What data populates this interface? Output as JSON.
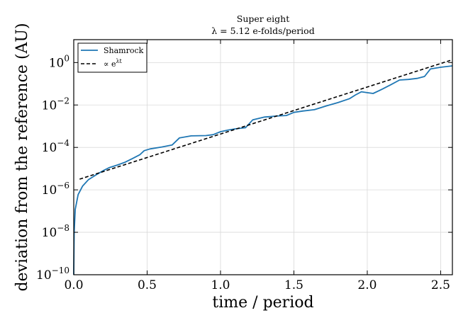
{
  "chart_data": {
    "type": "line",
    "title": "Super eight",
    "subtitle": "λ = 5.12 e-folds/period",
    "xlabel": "time / period",
    "ylabel": "deviation from the reference (AU)",
    "xlim": [
      0,
      2.58
    ],
    "ylim": [
      1e-10,
      12
    ],
    "yscale": "log",
    "grid": true,
    "legend_position": "upper-left",
    "x_ticks": [
      {
        "value": 0.0,
        "label": "0.0"
      },
      {
        "value": 0.5,
        "label": "0.5"
      },
      {
        "value": 1.0,
        "label": "1.0"
      },
      {
        "value": 1.5,
        "label": "1.5"
      },
      {
        "value": 2.0,
        "label": "2.0"
      },
      {
        "value": 2.5,
        "label": "2.5"
      }
    ],
    "y_ticks": [
      {
        "exp": -10,
        "base": "10",
        "sup": "−10"
      },
      {
        "exp": -8,
        "base": "10",
        "sup": "−8"
      },
      {
        "exp": -6,
        "base": "10",
        "sup": "−6"
      },
      {
        "exp": -4,
        "base": "10",
        "sup": "−4"
      },
      {
        "exp": -2,
        "base": "10",
        "sup": "−2"
      },
      {
        "exp": 0,
        "base": "10",
        "sup": "0"
      }
    ],
    "series": [
      {
        "name": "Shamrock",
        "color": "#1f77b4",
        "style": "solid",
        "points": [
          [
            0.0,
            1e-10
          ],
          [
            0.003,
            1e-08
          ],
          [
            0.01,
            1.2e-07
          ],
          [
            0.03,
            6e-07
          ],
          [
            0.06,
            1.5e-06
          ],
          [
            0.1,
            3e-06
          ],
          [
            0.15,
            5e-06
          ],
          [
            0.2,
            8e-06
          ],
          [
            0.24,
            1.1e-05
          ],
          [
            0.3,
            1.5e-05
          ],
          [
            0.35,
            2e-05
          ],
          [
            0.4,
            3e-05
          ],
          [
            0.45,
            4.5e-05
          ],
          [
            0.48,
            7e-05
          ],
          [
            0.52,
            8.5e-05
          ],
          [
            0.6,
            0.000105
          ],
          [
            0.67,
            0.00013
          ],
          [
            0.72,
            0.00028
          ],
          [
            0.8,
            0.00035
          ],
          [
            0.9,
            0.00036
          ],
          [
            0.95,
            0.0004
          ],
          [
            1.0,
            0.00055
          ],
          [
            1.05,
            0.00065
          ],
          [
            1.1,
            0.00075
          ],
          [
            1.17,
            0.00085
          ],
          [
            1.22,
            0.002
          ],
          [
            1.3,
            0.0027
          ],
          [
            1.38,
            0.003
          ],
          [
            1.45,
            0.0032
          ],
          [
            1.5,
            0.0045
          ],
          [
            1.56,
            0.0052
          ],
          [
            1.64,
            0.006
          ],
          [
            1.72,
            0.009
          ],
          [
            1.8,
            0.013
          ],
          [
            1.88,
            0.02
          ],
          [
            1.92,
            0.03
          ],
          [
            1.96,
            0.042
          ],
          [
            2.0,
            0.038
          ],
          [
            2.04,
            0.035
          ],
          [
            2.1,
            0.055
          ],
          [
            2.16,
            0.09
          ],
          [
            2.22,
            0.15
          ],
          [
            2.28,
            0.16
          ],
          [
            2.34,
            0.18
          ],
          [
            2.39,
            0.22
          ],
          [
            2.43,
            0.5
          ],
          [
            2.5,
            0.6
          ],
          [
            2.58,
            0.7
          ]
        ]
      },
      {
        "name": "∝ e^(λt)",
        "legend_base": "∝ e",
        "legend_sup": "λt",
        "color": "#000000",
        "style": "dashed",
        "points": [
          [
            0.04,
            3.2e-06
          ],
          [
            2.58,
            1.35
          ]
        ]
      }
    ]
  }
}
